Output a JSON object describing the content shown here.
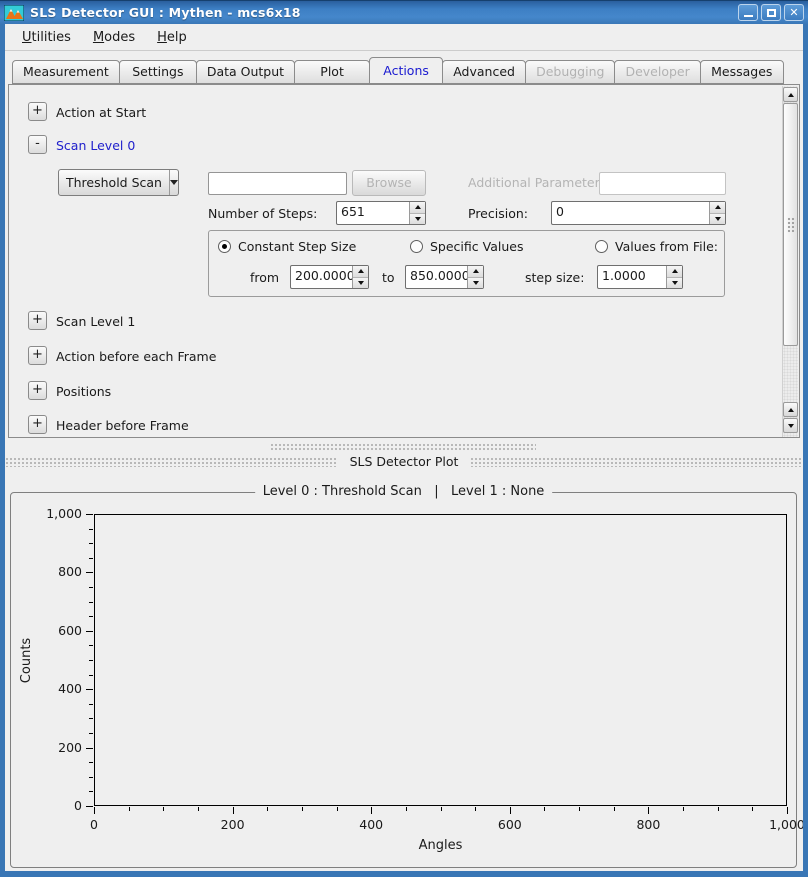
{
  "window": {
    "title": "SLS Detector GUI : Mythen - mcs6x18",
    "icon": "mountain-logo",
    "controls": [
      "minimize",
      "maximize",
      "close"
    ]
  },
  "menu": {
    "items": [
      {
        "label": "Utilities",
        "underline_index": 0
      },
      {
        "label": "Modes",
        "underline_index": 0
      },
      {
        "label": "Help",
        "underline_index": 0
      }
    ]
  },
  "tabs": [
    {
      "label": "Measurement",
      "state": "normal"
    },
    {
      "label": "Settings",
      "state": "normal"
    },
    {
      "label": "Data Output",
      "state": "normal"
    },
    {
      "label": "Plot",
      "state": "normal"
    },
    {
      "label": "Actions",
      "state": "active"
    },
    {
      "label": "Advanced",
      "state": "normal"
    },
    {
      "label": "Debugging",
      "state": "disabled"
    },
    {
      "label": "Developer",
      "state": "disabled"
    },
    {
      "label": "Messages",
      "state": "normal"
    }
  ],
  "actions_panel": {
    "sections": [
      {
        "expander": "+",
        "label": "Action at Start"
      },
      {
        "expander": "-",
        "label": "Scan Level 0"
      },
      {
        "expander": "+",
        "label": "Scan Level 1"
      },
      {
        "expander": "+",
        "label": "Action before each Frame"
      },
      {
        "expander": "+",
        "label": "Positions"
      },
      {
        "expander": "+",
        "label": "Header before Frame"
      }
    ],
    "scan_level_0": {
      "mode_selected": "Threshold Scan",
      "script_value": "",
      "browse_label": "Browse",
      "additional_parameter_label": "Additional Parameter:",
      "additional_parameter_value": "",
      "steps_label": "Number of Steps:",
      "steps_value": "651",
      "precision_label": "Precision:",
      "precision_value": "0",
      "radios": {
        "constant": "Constant Step Size",
        "specific": "Specific Values",
        "from_file": "Values from File:",
        "selected": "constant"
      },
      "from_label": "from",
      "from_value": "200.0000",
      "to_label": "to",
      "to_value": "850.0000",
      "step_size_label": "step size:",
      "step_size_value": "1.0000"
    }
  },
  "dock": {
    "title": "SLS Detector Plot"
  },
  "chart_data": {
    "type": "line",
    "title": "Level 0 : Threshold Scan   |   Level 1 : None",
    "xlabel": "Angles",
    "ylabel": "Counts",
    "xlim": [
      0,
      1000
    ],
    "ylim": [
      0,
      1000
    ],
    "xticks": [
      0,
      200,
      400,
      600,
      800,
      1000
    ],
    "yticks": [
      0,
      200,
      400,
      600,
      800,
      1000
    ],
    "xtick_labels": [
      "0",
      "200",
      "400",
      "600",
      "800",
      "1,000"
    ],
    "ytick_labels": [
      "0",
      "200",
      "400",
      "600",
      "800",
      "1,000"
    ],
    "minor_tick_step": 50,
    "grid": false,
    "series": [],
    "note_empty_plot": true
  },
  "colors": {
    "titlebar_blue": "#3d7fc4",
    "window_border_blue": "#3976b5",
    "active_text_blue": "#1a1ad0",
    "background": "#efefef",
    "disabled_text": "#b4b4b4"
  }
}
